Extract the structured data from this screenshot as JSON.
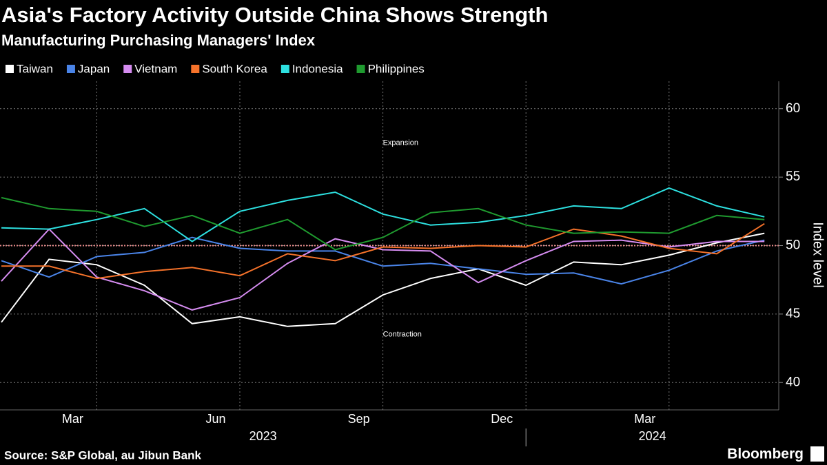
{
  "chart_data": {
    "type": "line",
    "title": "Asia's Factory Activity Outside China Shows Strength",
    "subtitle": "Manufacturing Purchasing Managers' Index",
    "y_axis_label": "Index level",
    "source": "Source: S&P Global, au Jibun Bank",
    "brand": "Bloomberg",
    "categories": [
      null,
      null,
      "Mar",
      null,
      null,
      "Jun",
      null,
      null,
      "Sep",
      null,
      null,
      "Dec",
      null,
      null,
      "Mar",
      null,
      null
    ],
    "x_groups": [
      {
        "label": "2023",
        "start": 0,
        "end": 11
      },
      {
        "label": "2024",
        "start": 12,
        "end": 16
      }
    ],
    "series": [
      {
        "name": "Taiwan",
        "color": "#ffffff",
        "values": [
          44.4,
          49.0,
          48.6,
          47.1,
          44.3,
          44.8,
          44.1,
          44.3,
          46.4,
          47.6,
          48.3,
          47.1,
          48.8,
          48.6,
          49.3,
          50.2,
          50.9
        ]
      },
      {
        "name": "Japan",
        "color": "#4a84e8",
        "values": [
          48.9,
          47.7,
          49.2,
          49.5,
          50.6,
          49.8,
          49.6,
          49.6,
          48.5,
          48.7,
          48.3,
          47.9,
          48.0,
          47.2,
          48.2,
          49.6,
          50.4
        ]
      },
      {
        "name": "Vietnam",
        "color": "#d58cf0",
        "values": [
          47.4,
          51.2,
          47.7,
          46.7,
          45.3,
          46.2,
          48.7,
          50.5,
          49.7,
          49.6,
          47.3,
          48.9,
          50.3,
          50.4,
          49.9,
          50.3,
          50.3
        ]
      },
      {
        "name": "South Korea",
        "color": "#f5722a",
        "values": [
          48.5,
          48.5,
          47.6,
          48.1,
          48.4,
          47.8,
          49.4,
          48.9,
          49.9,
          49.8,
          50.0,
          49.9,
          51.2,
          50.7,
          49.8,
          49.4,
          51.6
        ]
      },
      {
        "name": "Indonesia",
        "color": "#2de0e0",
        "values": [
          51.3,
          51.2,
          51.9,
          52.7,
          50.3,
          52.5,
          53.3,
          53.9,
          52.3,
          51.5,
          51.7,
          52.2,
          52.9,
          52.7,
          54.2,
          52.9,
          52.1
        ]
      },
      {
        "name": "Philippines",
        "color": "#1f9a2f",
        "values": [
          53.5,
          52.7,
          52.5,
          51.4,
          52.2,
          50.9,
          51.9,
          49.7,
          50.6,
          52.4,
          52.7,
          51.5,
          50.9,
          51.0,
          50.9,
          52.2,
          51.9
        ]
      }
    ],
    "reference_line": {
      "value": 50,
      "color": "#e88a8a"
    },
    "annotations": [
      {
        "text": "Expansion",
        "x": 8,
        "y": 57.5
      },
      {
        "text": "Contraction",
        "x": 8,
        "y": 43.5
      }
    ],
    "ylim": [
      38,
      62
    ],
    "yticks": [
      40,
      45,
      50,
      55,
      60
    ],
    "grid": true
  }
}
